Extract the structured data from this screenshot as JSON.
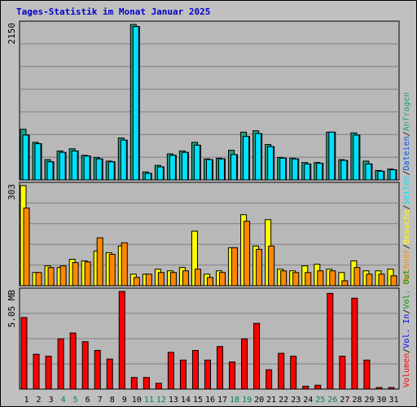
{
  "title": "Tages-Statistik im Monat Januar 2025",
  "chart_data": [
    {
      "type": "bar",
      "name": "requests-panel",
      "scale_label": "2150",
      "ylim": [
        0,
        2150
      ],
      "categories": [
        "1",
        "2",
        "3",
        "4",
        "5",
        "6",
        "7",
        "8",
        "9",
        "10",
        "11",
        "12",
        "13",
        "14",
        "15",
        "16",
        "17",
        "18",
        "19",
        "20",
        "21",
        "22",
        "23",
        "24",
        "25",
        "26",
        "27",
        "28",
        "29",
        "30",
        "31"
      ],
      "series": [
        {
          "name": "Anfragen",
          "color": "#209f80",
          "values": [
            700,
            520,
            280,
            400,
            430,
            340,
            310,
            260,
            580,
            2150,
            110,
            200,
            360,
            400,
            520,
            290,
            300,
            410,
            660,
            680,
            490,
            310,
            300,
            240,
            240,
            660,
            280,
            650,
            260,
            130,
            150
          ]
        },
        {
          "name": "Dateien",
          "color": "#0054e0",
          "values": [
            620,
            500,
            250,
            380,
            400,
            330,
            290,
            250,
            550,
            2120,
            90,
            180,
            340,
            380,
            480,
            280,
            290,
            350,
            600,
            640,
            460,
            300,
            290,
            220,
            230,
            660,
            270,
            620,
            220,
            120,
            140
          ]
        },
        {
          "name": "Seiten",
          "color": "#00e0ff",
          "values": [
            620,
            500,
            250,
            380,
            400,
            330,
            290,
            250,
            550,
            2120,
            90,
            180,
            340,
            380,
            480,
            280,
            290,
            350,
            600,
            640,
            460,
            300,
            290,
            220,
            230,
            660,
            270,
            620,
            220,
            120,
            140
          ]
        }
      ]
    },
    {
      "type": "bar",
      "name": "visits-panel",
      "scale_label": "303",
      "ylim": [
        0,
        303
      ],
      "categories": [
        "1",
        "2",
        "3",
        "4",
        "5",
        "6",
        "7",
        "8",
        "9",
        "10",
        "11",
        "12",
        "13",
        "14",
        "15",
        "16",
        "17",
        "18",
        "19",
        "20",
        "21",
        "22",
        "23",
        "24",
        "25",
        "26",
        "27",
        "28",
        "29",
        "30",
        "31"
      ],
      "series": [
        {
          "name": "Besuche",
          "color": "#ffff00",
          "values": [
            303,
            40,
            60,
            55,
            80,
            75,
            105,
            100,
            120,
            35,
            35,
            50,
            45,
            55,
            165,
            35,
            45,
            115,
            215,
            120,
            200,
            50,
            45,
            60,
            65,
            50,
            40,
            75,
            45,
            45,
            50
          ]
        },
        {
          "name": "Rechner",
          "color": "#ff8800",
          "values": [
            235,
            40,
            55,
            60,
            70,
            72,
            145,
            95,
            130,
            25,
            35,
            40,
            40,
            45,
            50,
            25,
            40,
            115,
            195,
            110,
            120,
            45,
            40,
            40,
            45,
            45,
            15,
            55,
            35,
            35,
            30
          ]
        }
      ]
    },
    {
      "type": "bar",
      "name": "volume-panel",
      "scale_label": "5.05 MB",
      "ylim": [
        0,
        5.05
      ],
      "categories": [
        "1",
        "2",
        "3",
        "4",
        "5",
        "6",
        "7",
        "8",
        "9",
        "10",
        "11",
        "12",
        "13",
        "14",
        "15",
        "16",
        "17",
        "18",
        "19",
        "20",
        "21",
        "22",
        "23",
        "24",
        "25",
        "26",
        "27",
        "28",
        "29",
        "30",
        "31"
      ],
      "series": [
        {
          "name": "Volumen",
          "color": "#ff0000",
          "values": [
            3.7,
            1.8,
            1.7,
            2.6,
            2.9,
            2.45,
            2.0,
            1.55,
            5.05,
            0.6,
            0.6,
            0.3,
            1.9,
            1.5,
            2.0,
            1.5,
            2.2,
            1.4,
            2.6,
            3.4,
            1.0,
            1.85,
            1.7,
            0.15,
            0.2,
            4.95,
            1.7,
            4.7,
            1.5,
            0.08,
            0.08
          ]
        }
      ]
    }
  ],
  "right_legend": {
    "top_items": [
      {
        "text": "Anfragen",
        "color": "#209f80"
      },
      {
        "text": "Dateien",
        "color": "#0054e0"
      },
      {
        "text": "Seiten",
        "color": "#00e0ff"
      },
      {
        "text": "Besuche",
        "color": "#ffff00"
      },
      {
        "text": "Rechner",
        "color": "#ff8800"
      }
    ],
    "bottom_items": [
      {
        "text": "Vol. Out",
        "color": "#009a00"
      },
      {
        "text": "Vol. In",
        "color": "#0000ff"
      },
      {
        "text": "Volumen",
        "color": "#ff0000"
      }
    ],
    "separator": "/",
    "separator_color": "#000000"
  },
  "x_labels": [
    {
      "text": "1",
      "color": "#000000"
    },
    {
      "text": "2",
      "color": "#000000"
    },
    {
      "text": "3",
      "color": "#000000"
    },
    {
      "text": "4",
      "color": "#00805f"
    },
    {
      "text": "5",
      "color": "#00805f"
    },
    {
      "text": "6",
      "color": "#000000"
    },
    {
      "text": "7",
      "color": "#000000"
    },
    {
      "text": "8",
      "color": "#000000"
    },
    {
      "text": "9",
      "color": "#000000"
    },
    {
      "text": "10",
      "color": "#000000"
    },
    {
      "text": "11",
      "color": "#00805f"
    },
    {
      "text": "12",
      "color": "#00805f"
    },
    {
      "text": "13",
      "color": "#000000"
    },
    {
      "text": "14",
      "color": "#000000"
    },
    {
      "text": "15",
      "color": "#000000"
    },
    {
      "text": "16",
      "color": "#000000"
    },
    {
      "text": "17",
      "color": "#000000"
    },
    {
      "text": "18",
      "color": "#00805f"
    },
    {
      "text": "19",
      "color": "#00805f"
    },
    {
      "text": "20",
      "color": "#000000"
    },
    {
      "text": "21",
      "color": "#000000"
    },
    {
      "text": "22",
      "color": "#000000"
    },
    {
      "text": "23",
      "color": "#000000"
    },
    {
      "text": "24",
      "color": "#000000"
    },
    {
      "text": "25",
      "color": "#00805f"
    },
    {
      "text": "26",
      "color": "#00805f"
    },
    {
      "text": "27",
      "color": "#000000"
    },
    {
      "text": "28",
      "color": "#000000"
    },
    {
      "text": "29",
      "color": "#000000"
    },
    {
      "text": "30",
      "color": "#000000"
    },
    {
      "text": "31",
      "color": "#000000"
    }
  ]
}
